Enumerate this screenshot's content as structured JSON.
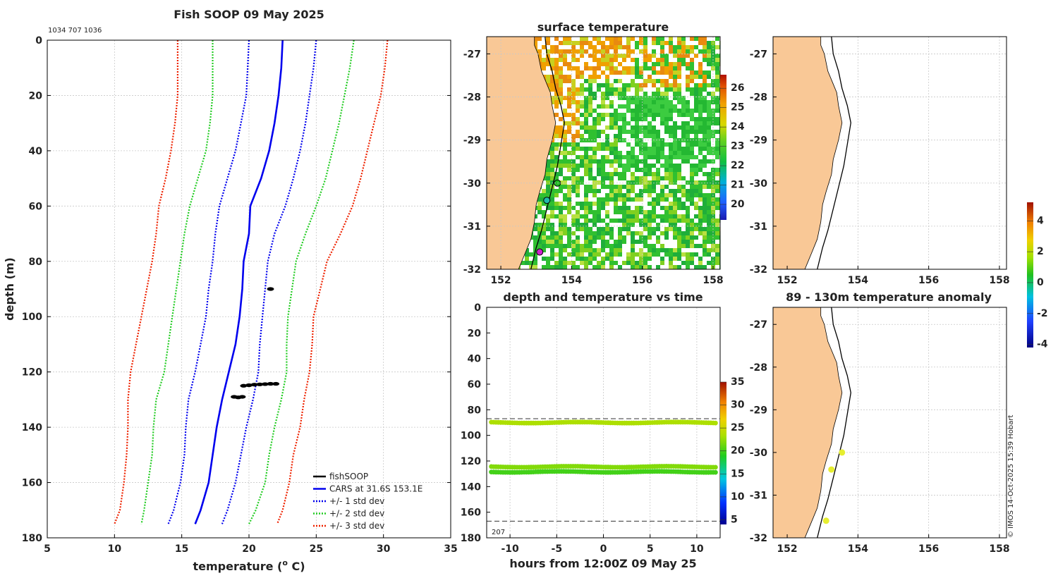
{
  "chart_data": [
    {
      "id": "profile",
      "type": "line",
      "title": "Fish SOOP 09 May 2025",
      "id_label": "1034 707 1036",
      "xlabel": "temperature (° C)",
      "xlabel_main": "temperature (",
      "xlabel_sup": "o",
      "xlabel_end": " C)",
      "ylabel": "depth (m)",
      "xlim": [
        5,
        35
      ],
      "ylim": [
        0,
        180
      ],
      "xticks": [
        5,
        10,
        15,
        20,
        25,
        30,
        35
      ],
      "yticks": [
        0,
        20,
        40,
        60,
        80,
        100,
        120,
        140,
        160,
        180
      ],
      "depth": [
        0,
        10,
        20,
        30,
        40,
        50,
        60,
        70,
        80,
        90,
        100,
        110,
        120,
        130,
        140,
        150,
        160,
        170,
        175
      ],
      "series": [
        {
          "name": "CARS at 31.6S 153.1E",
          "legend": "CARS at 31.6S 153.1E",
          "style": "solid",
          "color": "#0000ee",
          "values": [
            22.5,
            22.4,
            22.2,
            21.9,
            21.5,
            20.9,
            20.1,
            20.0,
            19.6,
            19.5,
            19.3,
            19.0,
            18.5,
            18.0,
            17.6,
            17.3,
            17.0,
            16.4,
            16.0
          ]
        },
        {
          "name": "+1 std dev",
          "style": "dotted",
          "color": "#0000ee",
          "values": [
            25.0,
            24.8,
            24.5,
            24.2,
            23.8,
            23.3,
            22.7,
            21.9,
            21.4,
            21.2,
            21.0,
            20.8,
            20.7,
            20.3,
            19.8,
            19.4,
            19.0,
            18.4,
            18.0
          ]
        },
        {
          "name": "-1 std dev",
          "style": "dotted",
          "color": "#0000ee",
          "values": [
            20.0,
            19.9,
            19.8,
            19.4,
            19.0,
            18.4,
            17.8,
            17.5,
            17.3,
            17.0,
            16.8,
            16.4,
            16.0,
            15.5,
            15.3,
            15.2,
            14.9,
            14.4,
            14.0
          ]
        },
        {
          "name": "+2 std dev",
          "style": "dotted",
          "color": "#22cc22",
          "values": [
            27.8,
            27.5,
            27.1,
            26.7,
            26.2,
            25.7,
            25.0,
            24.2,
            23.5,
            23.2,
            22.9,
            22.8,
            22.8,
            22.4,
            21.9,
            21.5,
            21.2,
            20.5,
            20.0
          ]
        },
        {
          "name": "-2 std dev",
          "style": "dotted",
          "color": "#22cc22",
          "values": [
            17.3,
            17.3,
            17.3,
            17.1,
            16.8,
            16.2,
            15.6,
            15.2,
            14.9,
            14.6,
            14.3,
            14.0,
            13.7,
            13.1,
            12.9,
            12.8,
            12.5,
            12.2,
            12.0
          ]
        },
        {
          "name": "+3 std dev",
          "style": "dotted",
          "color": "#ee2200",
          "values": [
            30.3,
            30.1,
            29.8,
            29.3,
            28.8,
            28.3,
            27.7,
            26.8,
            25.8,
            25.3,
            24.8,
            24.7,
            24.5,
            24.1,
            23.8,
            23.3,
            23.0,
            22.5,
            22.1
          ]
        },
        {
          "name": "-3 std dev",
          "style": "dotted",
          "color": "#ee2200",
          "values": [
            14.7,
            14.7,
            14.7,
            14.5,
            14.2,
            13.8,
            13.3,
            13.1,
            12.8,
            12.4,
            12.0,
            11.6,
            11.2,
            11.0,
            11.0,
            10.9,
            10.7,
            10.4,
            10.0
          ]
        }
      ],
      "fishsoop_points": [
        {
          "temp": 21.6,
          "depth": 90
        },
        {
          "temp": 19.6,
          "depth": 125
        },
        {
          "temp": 20.0,
          "depth": 124.8
        },
        {
          "temp": 20.4,
          "depth": 124.6
        },
        {
          "temp": 20.8,
          "depth": 124.5
        },
        {
          "temp": 21.2,
          "depth": 124.4
        },
        {
          "temp": 21.6,
          "depth": 124.3
        },
        {
          "temp": 22.0,
          "depth": 124.3
        },
        {
          "temp": 18.9,
          "depth": 129
        },
        {
          "temp": 19.2,
          "depth": 129.2
        },
        {
          "temp": 19.5,
          "depth": 129
        }
      ],
      "legend": [
        {
          "label": "fishSOOP",
          "color": "#000000",
          "style": "solid"
        },
        {
          "label": "CARS at 31.6S 153.1E",
          "color": "#0000ee",
          "style": "solid"
        },
        {
          "label": "+/- 1 std dev",
          "color": "#0000ee",
          "style": "dotted"
        },
        {
          "label": "+/- 2 std dev",
          "color": "#22cc22",
          "style": "dotted"
        },
        {
          "label": "+/- 3 std dev",
          "color": "#ee2200",
          "style": "dotted"
        }
      ]
    },
    {
      "id": "sst_map",
      "type": "heatmap",
      "title": "surface temperature",
      "xlim": [
        151.6,
        158.2
      ],
      "ylim": [
        -32,
        -26.6
      ],
      "xticks": [
        152,
        154,
        156,
        158
      ],
      "yticks": [
        -27,
        -28,
        -29,
        -30,
        -31,
        -32
      ],
      "colorbar": {
        "min": 19.2,
        "max": 26.7,
        "ticks": [
          20,
          21,
          22,
          23,
          24,
          25,
          26
        ]
      },
      "stations": [
        {
          "lon": 153.6,
          "lat": -30.0,
          "color": "#22bb22"
        },
        {
          "lon": 153.3,
          "lat": -30.4,
          "color": "#22bbaa"
        },
        {
          "lon": 153.1,
          "lat": -31.6,
          "color": "#cc22cc"
        }
      ]
    },
    {
      "id": "depth_time",
      "type": "scatter",
      "title": "depth and temperature vs time",
      "xlabel": "hours from 12:00Z 09 May 25",
      "xlim": [
        -12.5,
        12.5
      ],
      "ylim": [
        0,
        180
      ],
      "xticks": [
        -10,
        -5,
        0,
        5,
        10
      ],
      "yticks": [
        0,
        20,
        40,
        60,
        80,
        100,
        120,
        140,
        160,
        180
      ],
      "dashed_depths": [
        87,
        167
      ],
      "bottom_label": "207",
      "colorbar": {
        "min": 4,
        "max": 35,
        "ticks": [
          5,
          10,
          15,
          20,
          25,
          30,
          35
        ]
      },
      "series": [
        {
          "name": "~90m",
          "depth": 90,
          "temp": 23.5
        },
        {
          "name": "~124m",
          "depth": 124.5,
          "temp": 22.0
        },
        {
          "name": "~129m",
          "depth": 128.5,
          "temp": 20.0
        }
      ]
    },
    {
      "id": "empty_map",
      "type": "heatmap",
      "title": "",
      "xlim": [
        151.6,
        158.2
      ],
      "ylim": [
        -32,
        -26.6
      ],
      "xticks": [
        152,
        154,
        156,
        158
      ],
      "yticks": [
        -27,
        -28,
        -29,
        -30,
        -31,
        -32
      ]
    },
    {
      "id": "anomaly_map",
      "type": "scatter",
      "title": "89 - 130m temperature anomaly",
      "xlim": [
        151.6,
        158.2
      ],
      "ylim": [
        -32,
        -26.6
      ],
      "xticks": [
        152,
        154,
        156,
        158
      ],
      "yticks": [
        -27,
        -28,
        -29,
        -30,
        -31,
        -32
      ],
      "points": [
        {
          "lon": 153.55,
          "lat": -30.0,
          "anomaly": 1.5
        },
        {
          "lon": 153.25,
          "lat": -30.4,
          "anomaly": 1.6
        },
        {
          "lon": 153.1,
          "lat": -31.6,
          "anomaly": 1.4
        }
      ],
      "colorbar": {
        "min": -4.2,
        "max": 5.2,
        "ticks": [
          4,
          2,
          0,
          -2,
          -4
        ]
      }
    }
  ],
  "footer": {
    "credit": "© IMOS 14-Oct-2025 15:39 Hobart"
  }
}
